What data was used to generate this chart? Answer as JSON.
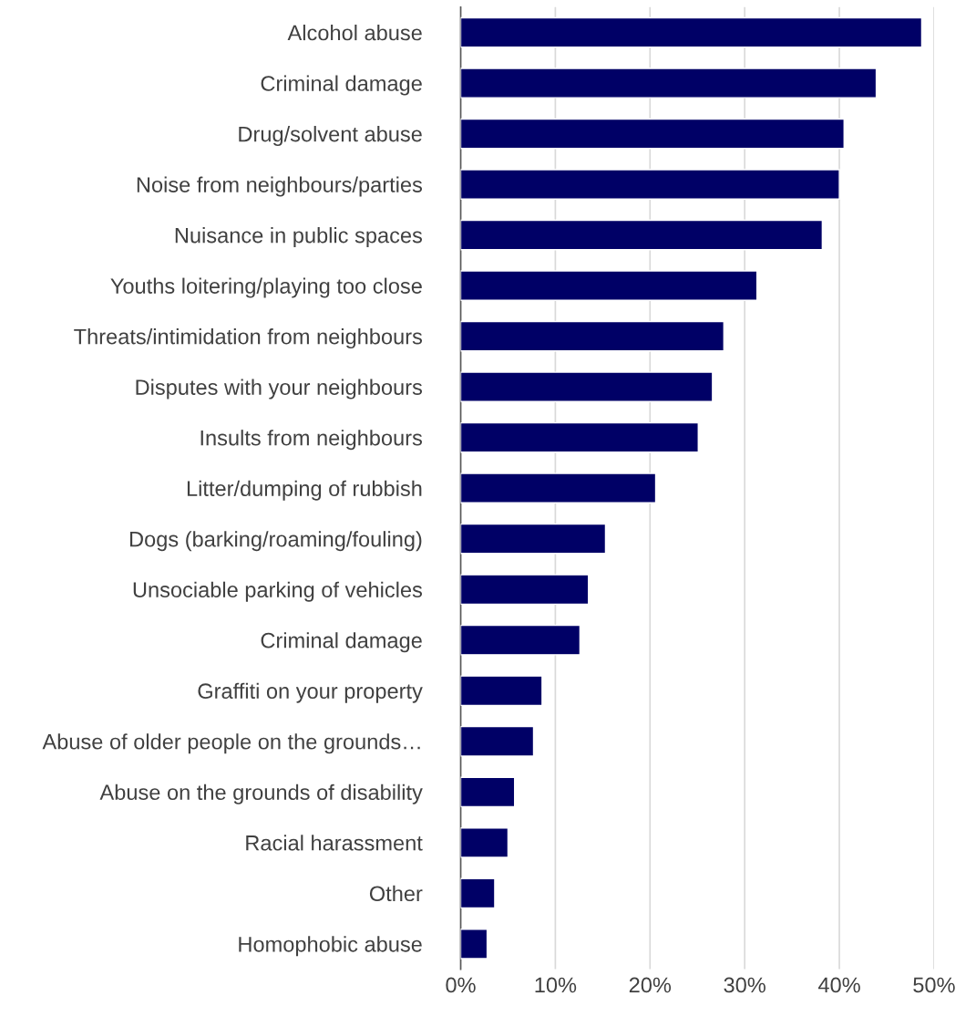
{
  "chart_data": {
    "type": "bar",
    "orientation": "horizontal",
    "categories": [
      "Alcohol abuse",
      "Criminal damage",
      "Drug/solvent abuse",
      "Noise from neighbours/parties",
      "Nuisance in public spaces",
      "Youths loitering/playing too close",
      "Threats/intimidation from neighbours",
      "Disputes with your neighbours",
      "Insults from neighbours",
      "Litter/dumping of rubbish",
      "Dogs (barking/roaming/fouling)",
      "Unsociable parking of vehicles",
      "Criminal damage",
      "Graffiti on your property",
      "Abuse of older people on the grounds…",
      "Abuse on the grounds of disability",
      "Racial harassment",
      "Other",
      "Homophobic abuse"
    ],
    "values": [
      48.7,
      43.9,
      40.5,
      40.0,
      38.2,
      31.3,
      27.8,
      26.6,
      25.1,
      20.6,
      15.3,
      13.5,
      12.6,
      8.6,
      7.7,
      5.7,
      5.0,
      3.6,
      2.8
    ],
    "color": "#000066",
    "xlim": [
      0,
      50
    ],
    "xticks": [
      {
        "value": 0,
        "label": "0%"
      },
      {
        "value": 10,
        "label": "10%"
      },
      {
        "value": 20,
        "label": "20%"
      },
      {
        "value": 30,
        "label": "30%"
      },
      {
        "value": 40,
        "label": "40%"
      },
      {
        "value": 50,
        "label": "50%"
      }
    ],
    "grid": "x",
    "legend": false
  }
}
